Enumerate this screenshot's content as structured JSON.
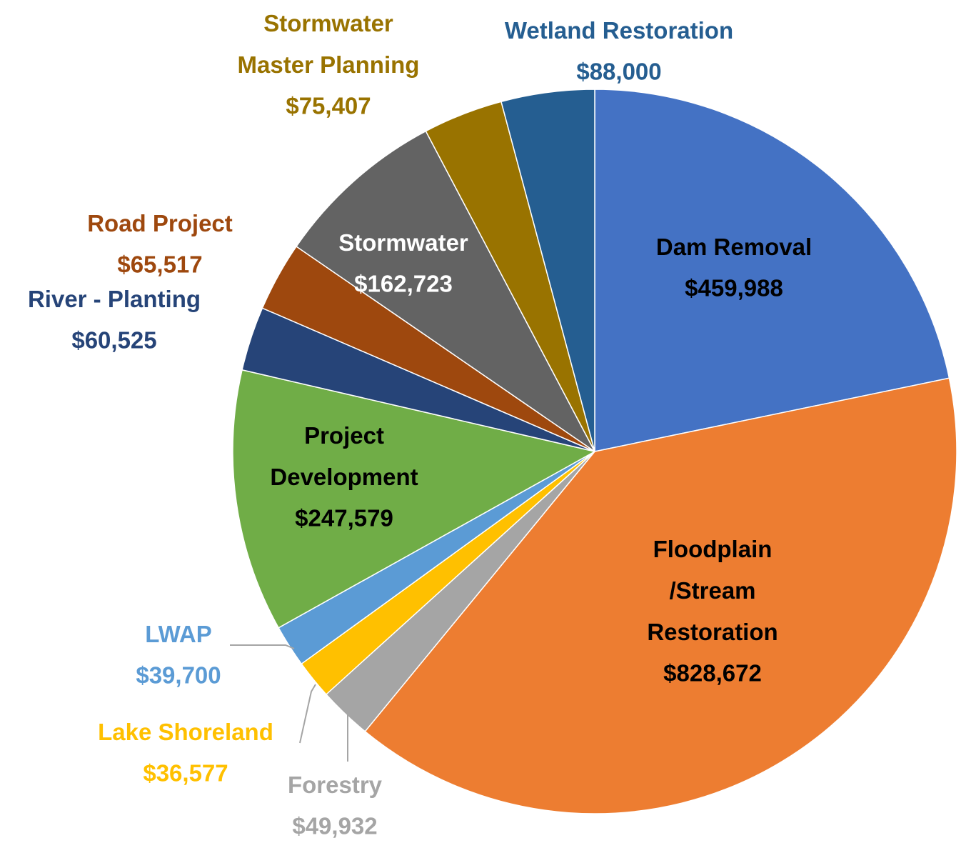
{
  "chart_data": {
    "type": "pie",
    "categories": [
      "Dam Removal",
      "Floodplain /Stream Restoration",
      "Forestry",
      "Lake Shoreland",
      "LWAP",
      "Project Development",
      "River - Planting",
      "Road Project",
      "Stormwater",
      "Stormwater Master Planning",
      "Wetland Restoration"
    ],
    "values": [
      459988,
      828672,
      49932,
      36577,
      39700,
      247579,
      60525,
      65517,
      162723,
      75407,
      88000
    ],
    "value_labels": [
      "$459,988",
      "$828,672",
      "$49,932",
      "$36,577",
      "$39,700",
      "$247,579",
      "$60,525",
      "$65,517",
      "$162,723",
      "$75,407",
      "$88,000"
    ],
    "colors": [
      "#4472c4",
      "#ed7d31",
      "#a5a5a5",
      "#ffc000",
      "#5b9bd5",
      "#70ad47",
      "#264478",
      "#9e480e",
      "#636363",
      "#997300",
      "#255e91"
    ]
  }
}
